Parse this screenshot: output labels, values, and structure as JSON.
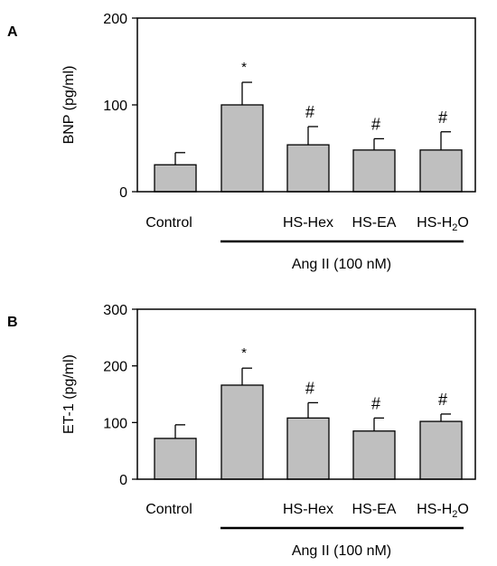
{
  "chart_data": [
    {
      "panel_label": "A",
      "type": "bar",
      "ylabel": "BNP (pg/ml)",
      "ylim": [
        0,
        200
      ],
      "yticks": [
        "0",
        "100",
        "200"
      ],
      "categories": [
        "Control",
        "",
        "HS-Hex",
        "HS-EA",
        "HS-H2O"
      ],
      "values": [
        31,
        100,
        54,
        48,
        48
      ],
      "errors": [
        14,
        26,
        21,
        13,
        21
      ],
      "annotations": [
        "",
        "*",
        "#",
        "#",
        "#"
      ],
      "group_label": "Ang II (100 nM)",
      "grid": false,
      "bar_color": "#bfbfbf"
    },
    {
      "panel_label": "B",
      "type": "bar",
      "ylabel": "ET-1 (pg/ml)",
      "ylim": [
        0,
        300
      ],
      "yticks": [
        "0",
        "100",
        "200",
        "300"
      ],
      "categories": [
        "Control",
        "",
        "HS-Hex",
        "HS-EA",
        "HS-H2O"
      ],
      "values": [
        72,
        166,
        108,
        85,
        102
      ],
      "errors": [
        24,
        30,
        27,
        23,
        13
      ],
      "annotations": [
        "",
        "*",
        "#",
        "#",
        "#"
      ],
      "group_label": "Ang II (100 nM)",
      "grid": false,
      "bar_color": "#bfbfbf"
    }
  ]
}
